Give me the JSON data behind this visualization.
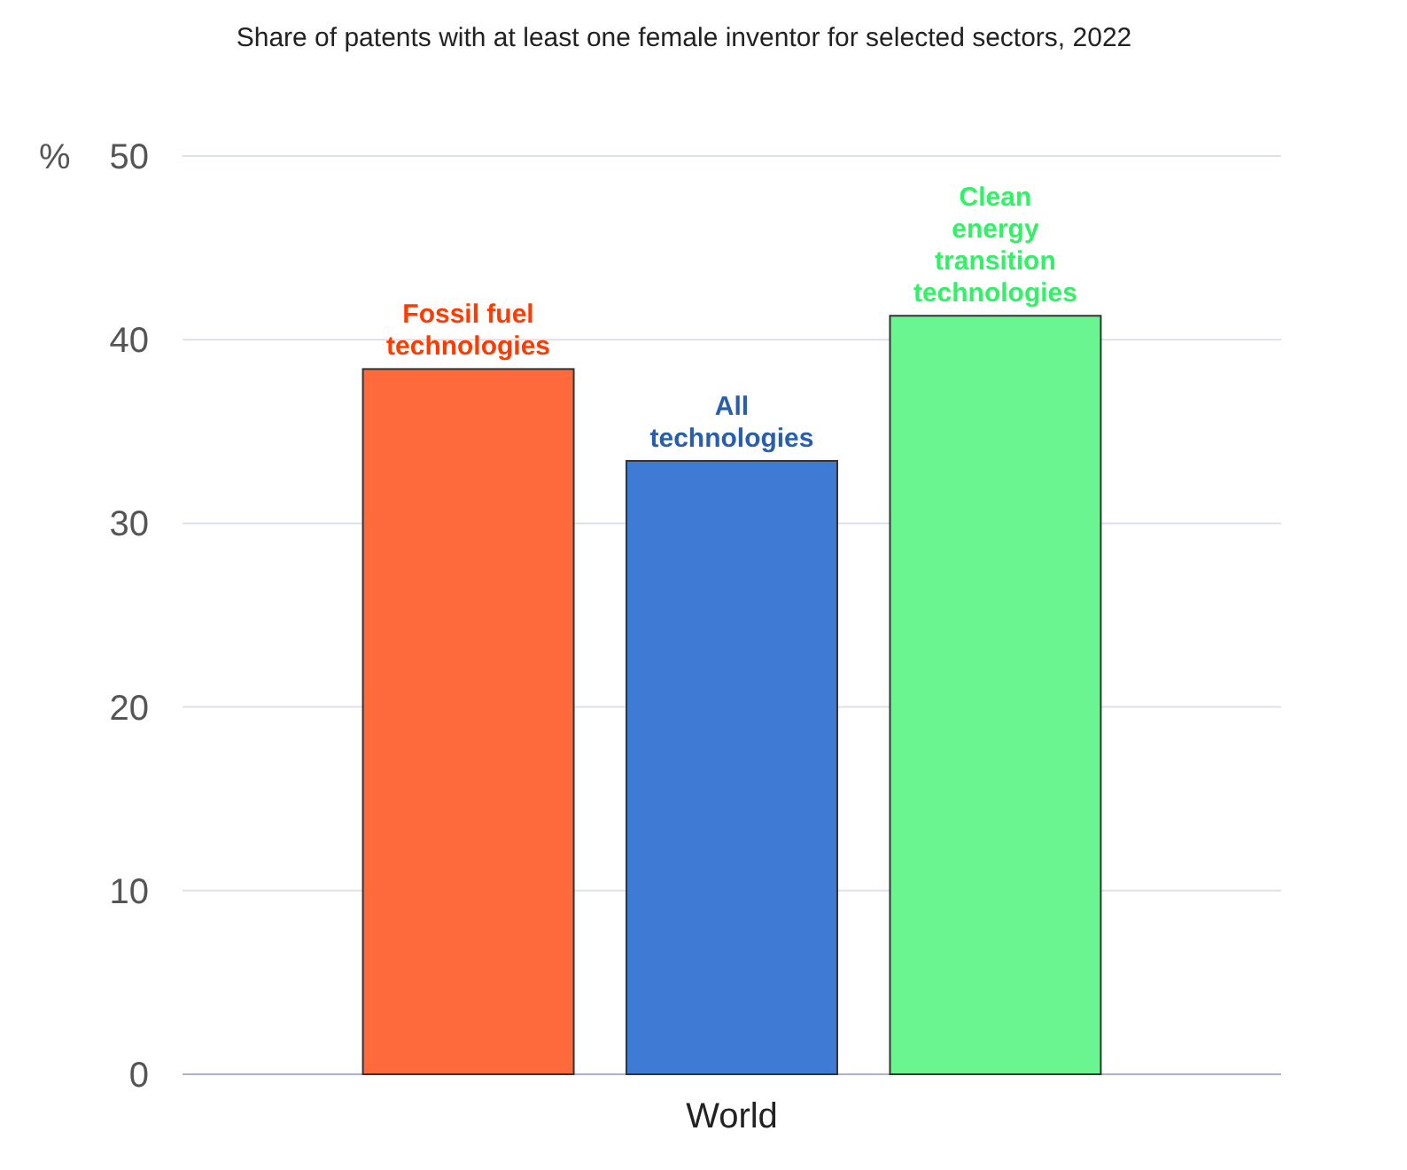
{
  "chart_data": {
    "type": "bar",
    "title": "Share of patents with at least one female inventor for selected sectors, 2022",
    "ylabel": "%",
    "categories": [
      "World"
    ],
    "series": [
      {
        "name": "Fossil fuel technologies",
        "color": "#ff6a3d",
        "values": [
          38.4
        ]
      },
      {
        "name": "All technologies",
        "color": "#3f7bd4",
        "values": [
          33.4
        ]
      },
      {
        "name": "Clean energy transition technologies",
        "color": "#6af590",
        "values": [
          41.3
        ]
      }
    ],
    "ylim": [
      0,
      50
    ],
    "yticks": [
      0,
      10,
      20,
      30,
      40,
      50
    ],
    "grid": "y"
  }
}
